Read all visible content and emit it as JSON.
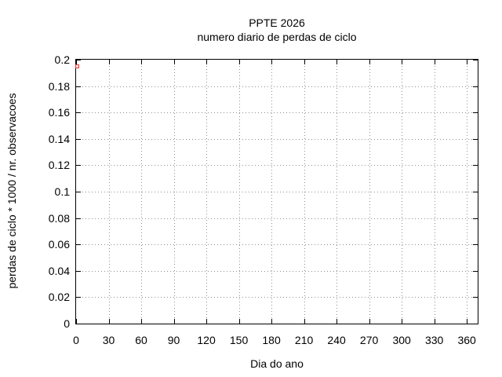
{
  "chart_data": {
    "type": "scatter",
    "title": "PPTE 2026",
    "subtitle": "numero diario de perdas de ciclo",
    "xlabel": "Dia do ano",
    "ylabel": "perdas de ciclo * 1000 / nr. observacoes",
    "xlim": [
      0,
      370
    ],
    "ylim": [
      0,
      0.2
    ],
    "xticks": [
      0,
      30,
      60,
      90,
      120,
      150,
      180,
      210,
      240,
      270,
      300,
      330,
      360
    ],
    "xtick_labels": [
      "0",
      "30",
      "60",
      "90",
      "120",
      "150",
      "180",
      "210",
      "240",
      "270",
      "300",
      "330",
      "360"
    ],
    "yticks": [
      0,
      0.02,
      0.04,
      0.06,
      0.08,
      0.1,
      0.12,
      0.14,
      0.16,
      0.18,
      0.2
    ],
    "ytick_labels": [
      "0",
      "0.02",
      "0.04",
      "0.06",
      "0.08",
      "0.1",
      "0.12",
      "0.14",
      "0.16",
      "0.18",
      "0.2"
    ],
    "grid": true,
    "legend": "none",
    "series": [
      {
        "name": "",
        "marker": "open-square",
        "color": "#f03b3b",
        "points": [
          [
            1,
            0.195
          ]
        ]
      }
    ]
  },
  "colors": {
    "background": "#ffffff",
    "axis": "#000000",
    "grid": "#909090",
    "point": "#f03b3b",
    "text": "#000000"
  }
}
